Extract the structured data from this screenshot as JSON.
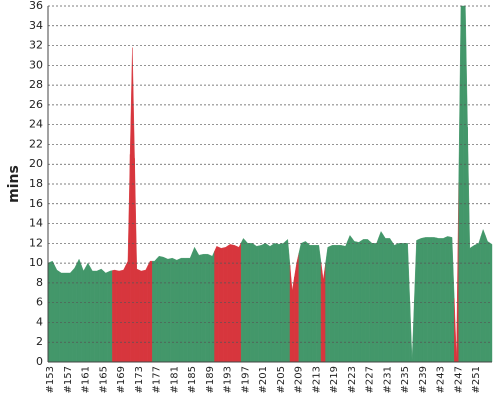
{
  "chart_data": {
    "type": "area",
    "y_label": "mins",
    "ylim": [
      0,
      36
    ],
    "yticks": [
      0,
      2,
      4,
      6,
      8,
      10,
      12,
      14,
      16,
      18,
      20,
      22,
      24,
      26,
      28,
      30,
      32,
      34,
      36
    ],
    "grid": true,
    "categories": [
      "#153",
      null,
      null,
      null,
      "#157",
      null,
      null,
      null,
      "#161",
      null,
      null,
      null,
      "#165",
      null,
      null,
      null,
      "#169",
      null,
      null,
      null,
      "#173",
      null,
      null,
      null,
      "#177",
      null,
      null,
      null,
      "#181",
      null,
      null,
      null,
      "#185",
      null,
      null,
      null,
      "#189",
      null,
      null,
      null,
      "#193",
      null,
      null,
      null,
      "#197",
      null,
      null,
      null,
      "#201",
      null,
      null,
      null,
      "#205",
      null,
      null,
      null,
      "#209",
      null,
      null,
      null,
      "#213",
      null,
      null,
      null,
      "#219",
      null,
      null,
      null,
      "#223",
      null,
      null,
      null,
      "#227",
      null,
      null,
      null,
      "#231",
      null,
      null,
      null,
      "#235",
      null,
      null,
      null,
      "#239",
      null,
      null,
      null,
      "#243",
      null,
      null,
      null,
      "#247",
      null,
      null,
      null,
      "#251",
      null,
      null,
      null,
      null
    ],
    "values": [
      10,
      10.2,
      9.3,
      9,
      9,
      9,
      9.5,
      10.4,
      9.2,
      10,
      9.2,
      9.2,
      9.4,
      9,
      9.2,
      9.3,
      9.2,
      9.3,
      10.2,
      31.8,
      9.4,
      9.2,
      9.3,
      10.2,
      10.2,
      10.7,
      10.6,
      10.4,
      10.5,
      10.3,
      10.5,
      10.5,
      10.5,
      11.6,
      10.8,
      10.9,
      10.9,
      10.7,
      11.7,
      11.5,
      11.6,
      11.9,
      11.8,
      11.6,
      12.5,
      12,
      12,
      11.7,
      11.8,
      12,
      11.7,
      12,
      11.9,
      12,
      12.4,
      7.2,
      10,
      12,
      12.2,
      11.8,
      11.8,
      11.8,
      8.3,
      11.6,
      11.8,
      11.8,
      11.8,
      11.7,
      12.8,
      12.2,
      12.1,
      12.4,
      12.4,
      12,
      12,
      13.2,
      12.5,
      12.5,
      11.8,
      12,
      12,
      12,
      0.2,
      12.3,
      12.5,
      12.6,
      12.6,
      12.6,
      12.5,
      12.5,
      12.7,
      12.6,
      0.3,
      36,
      36,
      11.5,
      11.8,
      12,
      13.4,
      12.2,
      11.9
    ],
    "colors": [
      "#43976a",
      "#43976a",
      "#43976a",
      "#43976a",
      "#43976a",
      "#43976a",
      "#43976a",
      "#43976a",
      "#43976a",
      "#43976a",
      "#43976a",
      "#43976a",
      "#43976a",
      "#43976a",
      "#43976a",
      "#d7363d",
      "#d7363d",
      "#d7363d",
      "#d7363d",
      "#d7363d",
      "#d7363d",
      "#d7363d",
      "#d7363d",
      "#d7363d",
      "#43976a",
      "#43976a",
      "#43976a",
      "#43976a",
      "#43976a",
      "#43976a",
      "#43976a",
      "#43976a",
      "#43976a",
      "#43976a",
      "#43976a",
      "#43976a",
      "#43976a",
      "#43976a",
      "#d7363d",
      "#d7363d",
      "#d7363d",
      "#d7363d",
      "#d7363d",
      "#d7363d",
      "#43976a",
      "#43976a",
      "#43976a",
      "#43976a",
      "#43976a",
      "#43976a",
      "#43976a",
      "#43976a",
      "#43976a",
      "#43976a",
      "#43976a",
      "#d7363d",
      "#d7363d",
      "#43976a",
      "#43976a",
      "#43976a",
      "#43976a",
      "#43976a",
      "#d7363d",
      "#43976a",
      "#43976a",
      "#43976a",
      "#43976a",
      "#43976a",
      "#43976a",
      "#43976a",
      "#43976a",
      "#43976a",
      "#43976a",
      "#43976a",
      "#43976a",
      "#43976a",
      "#43976a",
      "#43976a",
      "#43976a",
      "#43976a",
      "#43976a",
      "#43976a",
      "#43976a",
      "#43976a",
      "#43976a",
      "#43976a",
      "#43976a",
      "#43976a",
      "#43976a",
      "#43976a",
      "#43976a",
      "#43976a",
      "#d7363d",
      "#43976a",
      "#43976a",
      "#43976a",
      "#43976a",
      "#43976a",
      "#43976a",
      "#43976a",
      "#43976a"
    ]
  }
}
